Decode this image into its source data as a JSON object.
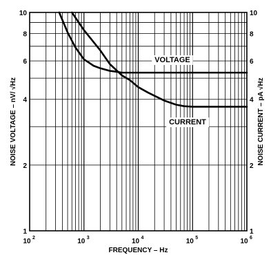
{
  "chart_data": {
    "type": "line",
    "x_scale": "log",
    "y_scale": "log",
    "xlim": [
      100,
      1000000
    ],
    "ylim": [
      1,
      10
    ],
    "y2lim": [
      1,
      10
    ],
    "grid": true,
    "xlabel": "FREQUENCY – Hz",
    "ylabel_left": "NOISE VOLTAGE – nV/ √Hz",
    "ylabel_right": "NOISE CURRENT – pA √Hz",
    "x_ticks": [
      {
        "value": 100,
        "base": "10",
        "exp": "2"
      },
      {
        "value": 1000,
        "base": "10",
        "exp": "3"
      },
      {
        "value": 10000,
        "base": "10",
        "exp": "4"
      },
      {
        "value": 100000,
        "base": "10",
        "exp": "5"
      },
      {
        "value": 1000000,
        "base": "10",
        "exp": "6"
      }
    ],
    "y_ticks_left": [
      {
        "value": 10,
        "label": "10"
      },
      {
        "value": 8,
        "label": "8"
      },
      {
        "value": 6,
        "label": "6"
      },
      {
        "value": 4,
        "label": "4"
      },
      {
        "value": 2,
        "label": "2"
      },
      {
        "value": 1,
        "label": "1"
      }
    ],
    "y_ticks_right": [
      {
        "value": 10,
        "label": "10"
      },
      {
        "value": 8,
        "label": "8"
      },
      {
        "value": 6,
        "label": "6"
      },
      {
        "value": 4,
        "label": "4"
      },
      {
        "value": 2,
        "label": "2"
      },
      {
        "value": 1,
        "label": "1"
      }
    ],
    "series": [
      {
        "name": "VOLTAGE",
        "axis": "left",
        "x": [
          350,
          500,
          700,
          1000,
          1500,
          2000,
          3000,
          4000,
          5000,
          7000,
          10000,
          100000,
          1000000
        ],
        "y": [
          10,
          8.1,
          6.9,
          6.1,
          5.7,
          5.55,
          5.4,
          5.35,
          5.3,
          5.3,
          5.3,
          5.3,
          5.3
        ]
      },
      {
        "name": "CURRENT",
        "axis": "right",
        "x": [
          600,
          1000,
          2000,
          3000,
          5000,
          7000,
          10000,
          15000,
          20000,
          30000,
          50000,
          70000,
          100000,
          1000000
        ],
        "y": [
          10,
          8.3,
          6.7,
          5.8,
          5.15,
          4.9,
          4.55,
          4.3,
          4.15,
          3.95,
          3.78,
          3.72,
          3.7,
          3.7
        ]
      }
    ]
  }
}
